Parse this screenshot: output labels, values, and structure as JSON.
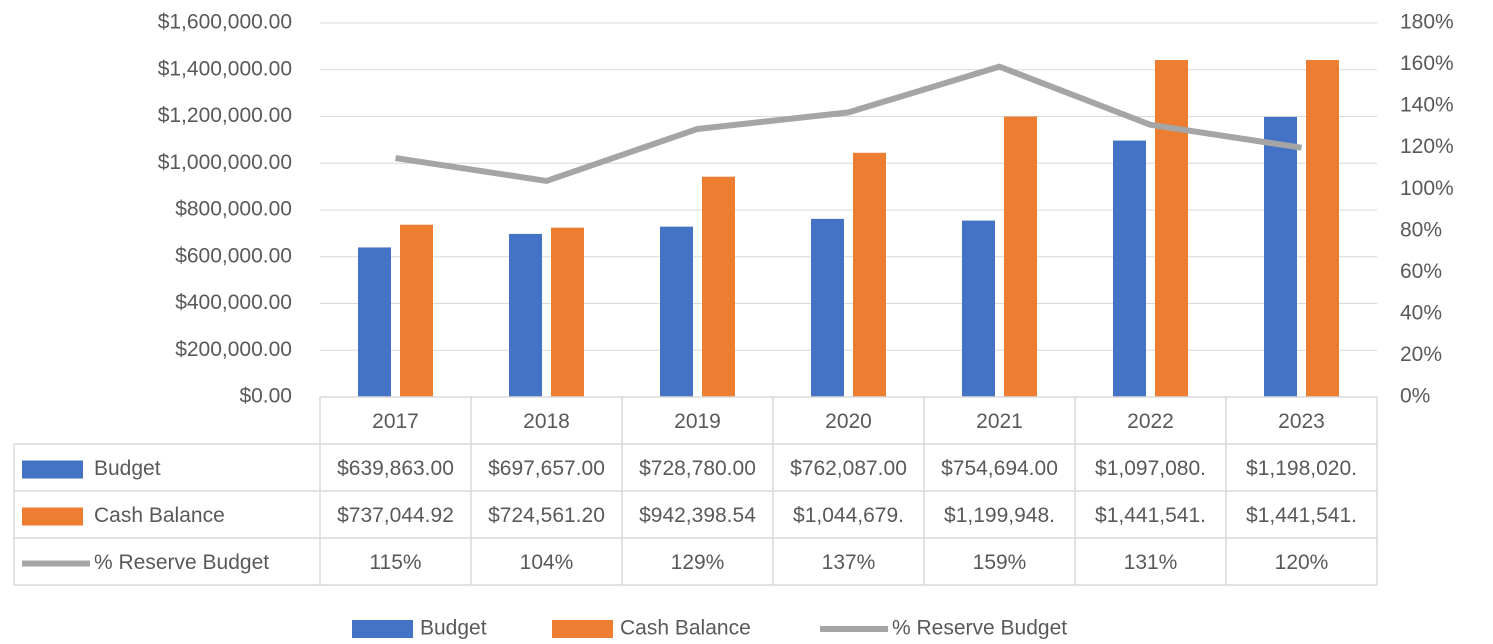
{
  "chart_data": {
    "type": "bar",
    "categories": [
      "2017",
      "2018",
      "2019",
      "2020",
      "2021",
      "2022",
      "2023"
    ],
    "series": [
      {
        "name": "Budget",
        "type": "bar",
        "color": "#4472c4",
        "values": [
          639863,
          697657,
          728780,
          762087,
          754694,
          1097080,
          1198020
        ],
        "value_labels": [
          "$639,863.00",
          "$697,657.00",
          "$728,780.00",
          "$762,087.00",
          "$754,694.00",
          "$1,097,080.",
          "$1,198,020."
        ]
      },
      {
        "name": "Cash Balance",
        "type": "bar",
        "color": "#ed7d31",
        "values": [
          737044.92,
          724561.2,
          942398.54,
          1044679,
          1199948,
          1441541,
          1441541
        ],
        "value_labels": [
          "$737,044.92",
          "$724,561.20",
          "$942,398.54",
          "$1,044,679.",
          "$1,199,948.",
          "$1,441,541.",
          "$1,441,541."
        ]
      },
      {
        "name": "% Reserve Budget",
        "type": "line",
        "axis": "y2",
        "color": "#a5a5a5",
        "values": [
          115,
          104,
          129,
          137,
          159,
          131,
          120
        ],
        "value_labels": [
          "115%",
          "104%",
          "129%",
          "137%",
          "159%",
          "131%",
          "120%"
        ]
      }
    ],
    "ylim": [
      0,
      1600000
    ],
    "yticks": [
      {
        "value": 0,
        "label": "$0.00"
      },
      {
        "value": 200000,
        "label": "$200,000.00"
      },
      {
        "value": 400000,
        "label": "$400,000.00"
      },
      {
        "value": 600000,
        "label": "$600,000.00"
      },
      {
        "value": 800000,
        "label": "$800,000.00"
      },
      {
        "value": 1000000,
        "label": "$1,000,000.00"
      },
      {
        "value": 1200000,
        "label": "$1,200,000.00"
      },
      {
        "value": 1400000,
        "label": "$1,400,000.00"
      },
      {
        "value": 1600000,
        "label": "$1,600,000.00"
      }
    ],
    "y2lim": [
      0,
      180
    ],
    "y2ticks": [
      {
        "value": 0,
        "label": "0%"
      },
      {
        "value": 20,
        "label": "20%"
      },
      {
        "value": 40,
        "label": "40%"
      },
      {
        "value": 60,
        "label": "60%"
      },
      {
        "value": 80,
        "label": "80%"
      },
      {
        "value": 100,
        "label": "100%"
      },
      {
        "value": 120,
        "label": "120%"
      },
      {
        "value": 140,
        "label": "140%"
      },
      {
        "value": 160,
        "label": "160%"
      },
      {
        "value": 180,
        "label": "180%"
      }
    ],
    "grid": true,
    "legend": "bottom",
    "data_table": true
  }
}
